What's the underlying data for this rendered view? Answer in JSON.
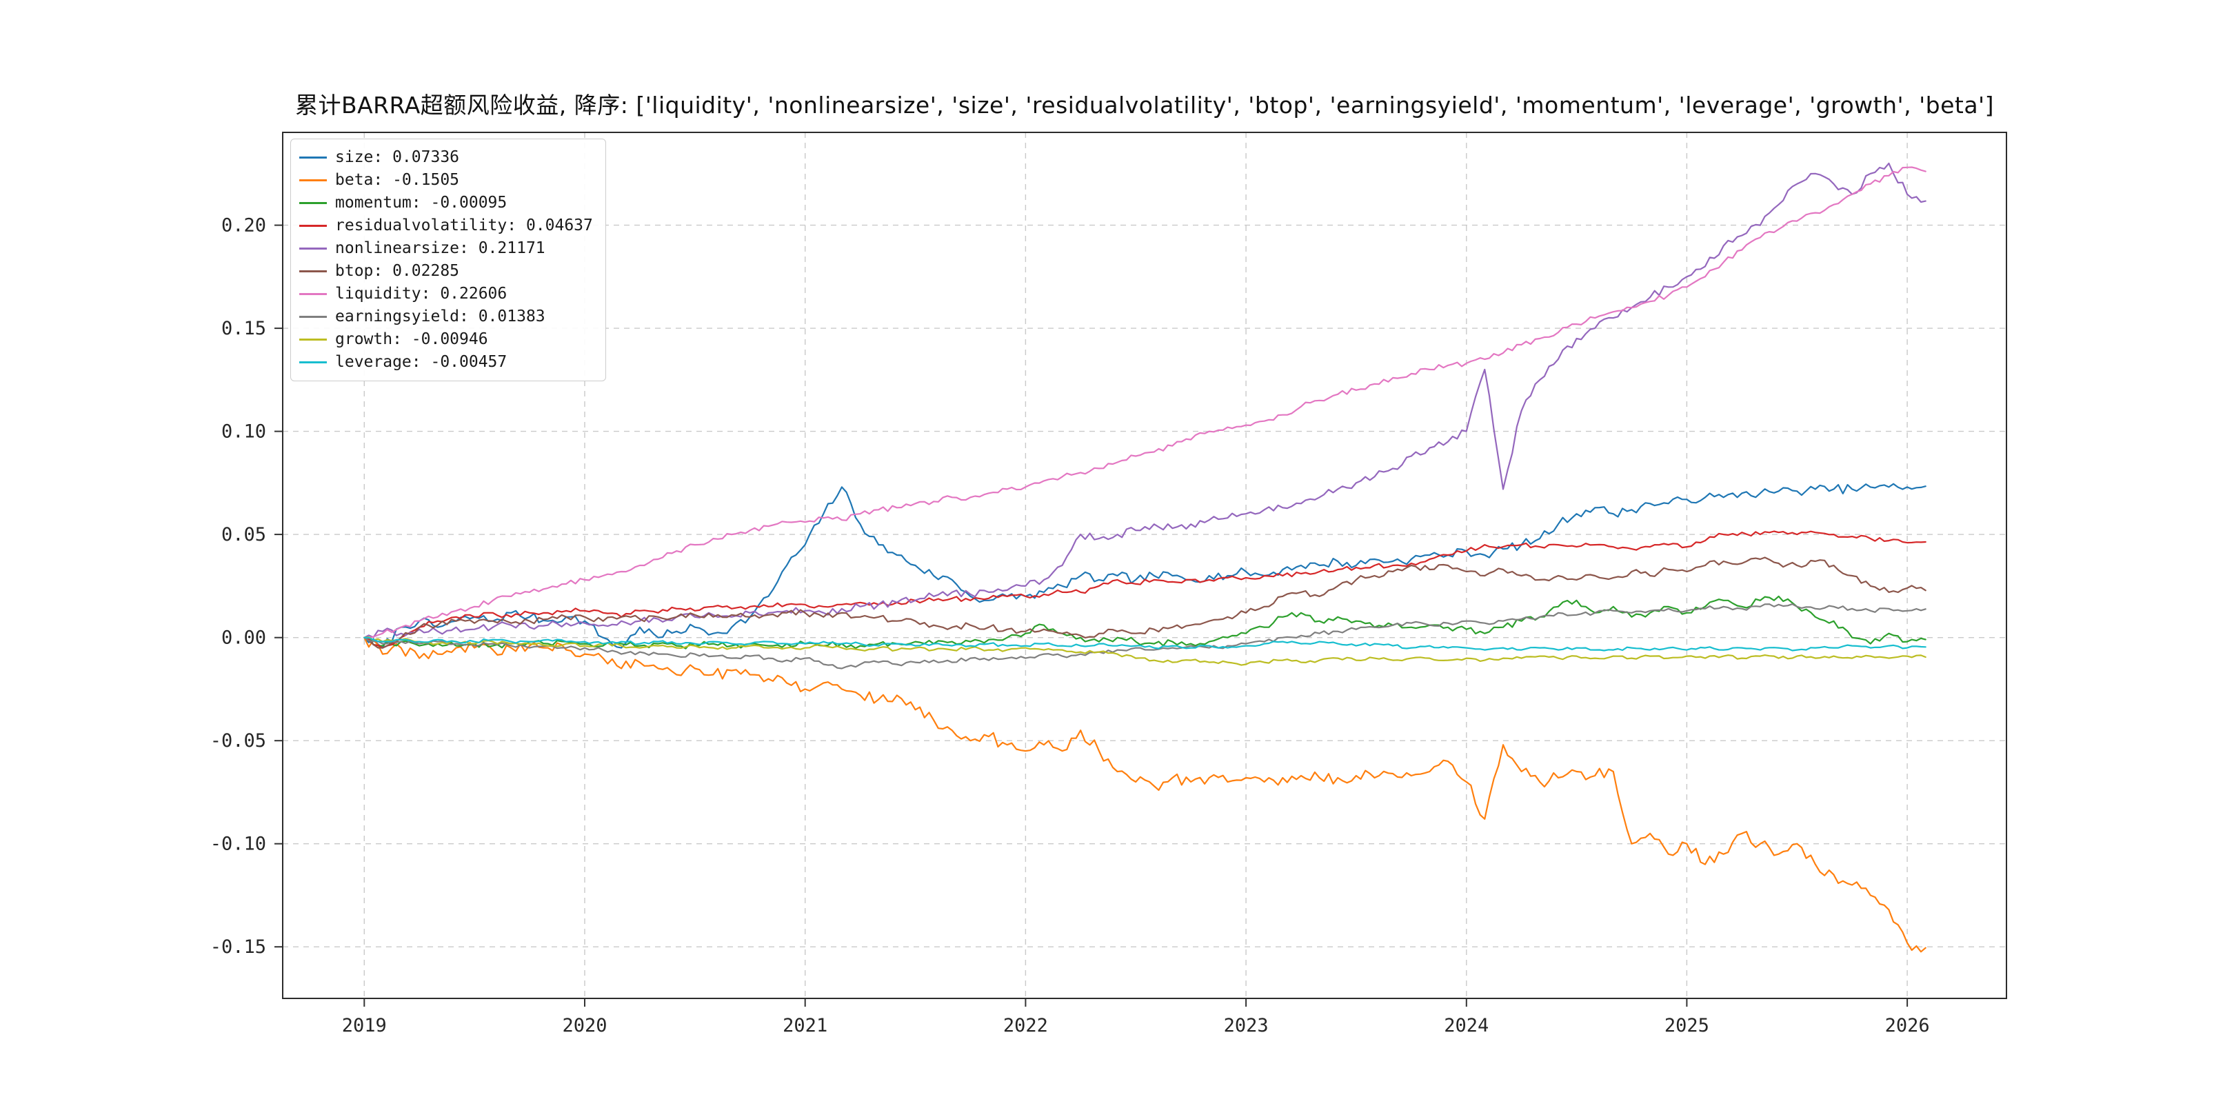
{
  "title": "累计BARRA超额风险收益, 降序: ['liquidity', 'nonlinearsize', 'size', 'residualvolatility', 'btop', 'earningsyield', 'momentum', 'leverage', 'growth', 'beta']",
  "chart_data": {
    "type": "line",
    "title": "累计BARRA超额风险收益",
    "xlabel": "",
    "ylabel": "",
    "grid": true,
    "grid_style": "dashed",
    "legend_position": "upper-left",
    "xlim": [
      2018.63,
      2026.45
    ],
    "ylim": [
      -0.175,
      0.245
    ],
    "xticks": [
      2019,
      2020,
      2021,
      2022,
      2023,
      2024,
      2025,
      2026
    ],
    "yticks": [
      -0.15,
      -0.1,
      -0.05,
      0.0,
      0.05,
      0.1,
      0.15,
      0.2
    ],
    "x_start": 2019.0,
    "x_step_years": 0.08333,
    "axis_color": "#333333",
    "grid_color": "#c9c9c9",
    "series": [
      {
        "name": "size",
        "label": "size: 0.07336",
        "color": "#1f77b4",
        "final_value": 0.07336,
        "noise": 0.0022,
        "values": [
          0.0,
          -0.005,
          0.005,
          0.008,
          0.005,
          0.008,
          0.01,
          0.008,
          0.012,
          0.01,
          0.008,
          0.01,
          0.008,
          0.0,
          -0.005,
          0.005,
          0.0,
          0.003,
          0.005,
          0.002,
          0.005,
          0.01,
          0.02,
          0.035,
          0.045,
          0.06,
          0.073,
          0.055,
          0.045,
          0.04,
          0.035,
          0.03,
          0.028,
          0.02,
          0.018,
          0.02,
          0.02,
          0.022,
          0.025,
          0.03,
          0.028,
          0.03,
          0.028,
          0.03,
          0.03,
          0.028,
          0.03,
          0.03,
          0.032,
          0.03,
          0.033,
          0.035,
          0.035,
          0.037,
          0.035,
          0.038,
          0.037,
          0.038,
          0.04,
          0.04,
          0.042,
          0.04,
          0.043,
          0.045,
          0.048,
          0.055,
          0.06,
          0.063,
          0.06,
          0.062,
          0.065,
          0.065,
          0.067,
          0.068,
          0.068,
          0.07,
          0.07,
          0.071,
          0.071,
          0.072,
          0.072,
          0.072,
          0.073,
          0.073,
          0.073,
          0.0734
        ]
      },
      {
        "name": "beta",
        "label": "beta: -0.1505",
        "color": "#ff7f0e",
        "final_value": -0.1505,
        "noise": 0.003,
        "values": [
          0.0,
          -0.008,
          -0.005,
          -0.01,
          -0.008,
          -0.005,
          -0.005,
          -0.006,
          -0.005,
          -0.004,
          -0.005,
          -0.006,
          -0.008,
          -0.01,
          -0.015,
          -0.012,
          -0.015,
          -0.018,
          -0.015,
          -0.018,
          -0.016,
          -0.018,
          -0.02,
          -0.022,
          -0.025,
          -0.022,
          -0.025,
          -0.028,
          -0.03,
          -0.028,
          -0.035,
          -0.04,
          -0.045,
          -0.05,
          -0.048,
          -0.052,
          -0.055,
          -0.052,
          -0.055,
          -0.045,
          -0.055,
          -0.065,
          -0.07,
          -0.072,
          -0.068,
          -0.07,
          -0.068,
          -0.07,
          -0.068,
          -0.07,
          -0.068,
          -0.067,
          -0.068,
          -0.068,
          -0.067,
          -0.068,
          -0.066,
          -0.067,
          -0.065,
          -0.06,
          -0.07,
          -0.088,
          -0.052,
          -0.065,
          -0.07,
          -0.068,
          -0.065,
          -0.067,
          -0.065,
          -0.1,
          -0.095,
          -0.105,
          -0.1,
          -0.11,
          -0.105,
          -0.095,
          -0.1,
          -0.105,
          -0.1,
          -0.11,
          -0.115,
          -0.12,
          -0.125,
          -0.132,
          -0.148,
          -0.1505
        ]
      },
      {
        "name": "momentum",
        "label": "momentum: -0.00095",
        "color": "#2ca02c",
        "final_value": -0.00095,
        "noise": 0.0015,
        "values": [
          0.0,
          -0.004,
          -0.002,
          -0.004,
          -0.003,
          -0.004,
          -0.003,
          -0.004,
          -0.003,
          -0.002,
          -0.003,
          -0.002,
          -0.003,
          -0.004,
          -0.003,
          -0.004,
          -0.003,
          -0.004,
          -0.004,
          -0.003,
          -0.004,
          -0.003,
          -0.004,
          -0.003,
          -0.003,
          -0.004,
          -0.003,
          -0.004,
          -0.003,
          -0.003,
          -0.002,
          -0.003,
          -0.002,
          -0.002,
          -0.001,
          0.0,
          0.002,
          0.006,
          0.002,
          0.0,
          -0.002,
          0.0,
          -0.002,
          -0.003,
          -0.002,
          -0.003,
          -0.002,
          0.0,
          0.002,
          0.005,
          0.01,
          0.012,
          0.008,
          0.01,
          0.008,
          0.005,
          0.006,
          0.005,
          0.006,
          0.005,
          0.004,
          0.002,
          0.005,
          0.008,
          0.01,
          0.015,
          0.018,
          0.012,
          0.015,
          0.01,
          0.012,
          0.015,
          0.012,
          0.015,
          0.018,
          0.015,
          0.018,
          0.02,
          0.015,
          0.01,
          0.008,
          0.0,
          -0.003,
          0.002,
          -0.002,
          -0.00095
        ]
      },
      {
        "name": "residualvolatility",
        "label": "residualvolatility: 0.04637",
        "color": "#d62728",
        "final_value": 0.04637,
        "noise": 0.0012,
        "values": [
          0.0,
          -0.005,
          0.0,
          0.005,
          0.008,
          0.01,
          0.01,
          0.012,
          0.01,
          0.012,
          0.012,
          0.013,
          0.013,
          0.012,
          0.01,
          0.013,
          0.012,
          0.014,
          0.013,
          0.015,
          0.014,
          0.015,
          0.015,
          0.016,
          0.016,
          0.015,
          0.016,
          0.017,
          0.016,
          0.017,
          0.018,
          0.018,
          0.019,
          0.018,
          0.019,
          0.02,
          0.02,
          0.021,
          0.022,
          0.022,
          0.025,
          0.028,
          0.026,
          0.028,
          0.027,
          0.028,
          0.028,
          0.029,
          0.029,
          0.03,
          0.03,
          0.031,
          0.032,
          0.033,
          0.034,
          0.035,
          0.035,
          0.036,
          0.038,
          0.04,
          0.042,
          0.045,
          0.044,
          0.045,
          0.044,
          0.045,
          0.044,
          0.045,
          0.044,
          0.043,
          0.044,
          0.045,
          0.044,
          0.047,
          0.05,
          0.051,
          0.05,
          0.051,
          0.05,
          0.051,
          0.05,
          0.049,
          0.048,
          0.047,
          0.046,
          0.04637
        ]
      },
      {
        "name": "nonlinearsize",
        "label": "nonlinearsize: 0.21171",
        "color": "#9467bd",
        "final_value": 0.21171,
        "noise": 0.002,
        "values": [
          0.0,
          0.003,
          0.002,
          0.004,
          0.003,
          0.005,
          0.004,
          0.005,
          0.006,
          0.005,
          0.006,
          0.007,
          0.007,
          0.006,
          0.008,
          0.008,
          0.009,
          0.01,
          0.01,
          0.011,
          0.01,
          0.012,
          0.012,
          0.013,
          0.013,
          0.012,
          0.014,
          0.015,
          0.016,
          0.017,
          0.018,
          0.02,
          0.022,
          0.021,
          0.022,
          0.023,
          0.025,
          0.028,
          0.035,
          0.05,
          0.048,
          0.05,
          0.052,
          0.055,
          0.053,
          0.055,
          0.057,
          0.058,
          0.06,
          0.062,
          0.063,
          0.065,
          0.068,
          0.072,
          0.075,
          0.078,
          0.082,
          0.088,
          0.092,
          0.095,
          0.1,
          0.13,
          0.072,
          0.11,
          0.125,
          0.135,
          0.145,
          0.15,
          0.155,
          0.16,
          0.165,
          0.17,
          0.175,
          0.18,
          0.19,
          0.195,
          0.2,
          0.21,
          0.22,
          0.225,
          0.22,
          0.215,
          0.225,
          0.23,
          0.215,
          0.21171
        ]
      },
      {
        "name": "btop",
        "label": "btop: 0.02285",
        "color": "#8c564b",
        "final_value": 0.02285,
        "noise": 0.0015,
        "values": [
          0.0,
          -0.005,
          0.0,
          0.005,
          0.006,
          0.008,
          0.007,
          0.008,
          0.007,
          0.008,
          0.009,
          0.01,
          0.01,
          0.008,
          0.01,
          0.009,
          0.01,
          0.01,
          0.011,
          0.01,
          0.011,
          0.01,
          0.011,
          0.012,
          0.012,
          0.01,
          0.012,
          0.01,
          0.01,
          0.008,
          0.008,
          0.006,
          0.005,
          0.006,
          0.005,
          0.004,
          0.003,
          0.004,
          0.002,
          0.001,
          0.002,
          0.003,
          0.002,
          0.004,
          0.005,
          0.006,
          0.008,
          0.01,
          0.012,
          0.015,
          0.02,
          0.022,
          0.02,
          0.025,
          0.028,
          0.03,
          0.032,
          0.035,
          0.033,
          0.035,
          0.032,
          0.03,
          0.033,
          0.03,
          0.028,
          0.03,
          0.028,
          0.03,
          0.029,
          0.032,
          0.03,
          0.033,
          0.032,
          0.035,
          0.037,
          0.036,
          0.038,
          0.036,
          0.035,
          0.037,
          0.035,
          0.03,
          0.025,
          0.022,
          0.024,
          0.02285
        ]
      },
      {
        "name": "liquidity",
        "label": "liquidity: 0.22606",
        "color": "#e377c2",
        "final_value": 0.22606,
        "noise": 0.0013,
        "values": [
          0.0,
          0.002,
          0.005,
          0.008,
          0.01,
          0.013,
          0.015,
          0.018,
          0.02,
          0.022,
          0.024,
          0.026,
          0.028,
          0.03,
          0.032,
          0.035,
          0.038,
          0.042,
          0.045,
          0.048,
          0.05,
          0.052,
          0.054,
          0.056,
          0.056,
          0.058,
          0.057,
          0.06,
          0.062,
          0.063,
          0.065,
          0.066,
          0.068,
          0.068,
          0.07,
          0.072,
          0.073,
          0.076,
          0.078,
          0.08,
          0.082,
          0.085,
          0.088,
          0.09,
          0.093,
          0.096,
          0.1,
          0.102,
          0.103,
          0.105,
          0.108,
          0.112,
          0.115,
          0.118,
          0.12,
          0.123,
          0.126,
          0.128,
          0.13,
          0.132,
          0.133,
          0.135,
          0.138,
          0.142,
          0.145,
          0.148,
          0.152,
          0.155,
          0.158,
          0.16,
          0.163,
          0.166,
          0.17,
          0.175,
          0.182,
          0.188,
          0.194,
          0.198,
          0.202,
          0.206,
          0.21,
          0.215,
          0.22,
          0.224,
          0.228,
          0.22606
        ]
      },
      {
        "name": "earningsyield",
        "label": "earningsyield: 0.01383",
        "color": "#7f7f7f",
        "final_value": 0.01383,
        "noise": 0.001,
        "values": [
          0.0,
          -0.003,
          -0.002,
          -0.003,
          -0.002,
          -0.003,
          -0.004,
          -0.003,
          -0.004,
          -0.005,
          -0.004,
          -0.005,
          -0.005,
          -0.006,
          -0.008,
          -0.007,
          -0.008,
          -0.009,
          -0.008,
          -0.009,
          -0.01,
          -0.009,
          -0.01,
          -0.011,
          -0.01,
          -0.013,
          -0.015,
          -0.013,
          -0.012,
          -0.013,
          -0.012,
          -0.011,
          -0.012,
          -0.01,
          -0.011,
          -0.01,
          -0.01,
          -0.008,
          -0.009,
          -0.008,
          -0.007,
          -0.006,
          -0.005,
          -0.006,
          -0.005,
          -0.004,
          -0.005,
          -0.004,
          -0.003,
          -0.002,
          0.0,
          0.001,
          0.002,
          0.003,
          0.004,
          0.005,
          0.006,
          0.007,
          0.006,
          0.007,
          0.008,
          0.007,
          0.008,
          0.009,
          0.01,
          0.012,
          0.011,
          0.012,
          0.013,
          0.012,
          0.013,
          0.014,
          0.013,
          0.014,
          0.015,
          0.014,
          0.015,
          0.016,
          0.015,
          0.014,
          0.015,
          0.014,
          0.013,
          0.014,
          0.013,
          0.01383
        ]
      },
      {
        "name": "growth",
        "label": "growth: -0.00946",
        "color": "#bcbd22",
        "final_value": -0.00946,
        "noise": 0.0008,
        "values": [
          0.0,
          -0.002,
          -0.001,
          -0.002,
          -0.003,
          -0.002,
          -0.003,
          -0.002,
          -0.003,
          -0.003,
          -0.004,
          -0.003,
          -0.004,
          -0.003,
          -0.004,
          -0.005,
          -0.004,
          -0.005,
          -0.004,
          -0.005,
          -0.005,
          -0.004,
          -0.005,
          -0.005,
          -0.005,
          -0.004,
          -0.005,
          -0.006,
          -0.005,
          -0.006,
          -0.005,
          -0.006,
          -0.006,
          -0.005,
          -0.006,
          -0.006,
          -0.005,
          -0.006,
          -0.006,
          -0.007,
          -0.007,
          -0.008,
          -0.01,
          -0.011,
          -0.012,
          -0.011,
          -0.012,
          -0.012,
          -0.013,
          -0.012,
          -0.011,
          -0.012,
          -0.011,
          -0.01,
          -0.011,
          -0.01,
          -0.011,
          -0.01,
          -0.01,
          -0.011,
          -0.01,
          -0.011,
          -0.01,
          -0.01,
          -0.009,
          -0.01,
          -0.009,
          -0.01,
          -0.009,
          -0.01,
          -0.009,
          -0.01,
          -0.009,
          -0.01,
          -0.009,
          -0.01,
          -0.009,
          -0.01,
          -0.009,
          -0.01,
          -0.009,
          -0.01,
          -0.009,
          -0.01,
          -0.009,
          -0.00946
        ]
      },
      {
        "name": "leverage",
        "label": "leverage: -0.00457",
        "color": "#17becf",
        "final_value": -0.00457,
        "noise": 0.0007,
        "values": [
          0.0,
          -0.002,
          -0.001,
          -0.002,
          -0.001,
          -0.002,
          -0.002,
          -0.001,
          -0.002,
          -0.002,
          -0.001,
          -0.002,
          -0.002,
          -0.003,
          -0.002,
          -0.003,
          -0.002,
          -0.003,
          -0.003,
          -0.002,
          -0.003,
          -0.003,
          -0.002,
          -0.003,
          -0.003,
          -0.002,
          -0.003,
          -0.003,
          -0.004,
          -0.003,
          -0.004,
          -0.003,
          -0.004,
          -0.004,
          -0.003,
          -0.004,
          -0.004,
          -0.003,
          -0.004,
          -0.004,
          -0.003,
          -0.004,
          -0.004,
          -0.005,
          -0.004,
          -0.005,
          -0.004,
          -0.005,
          -0.004,
          -0.003,
          -0.002,
          -0.003,
          -0.002,
          -0.003,
          -0.004,
          -0.003,
          -0.004,
          -0.005,
          -0.004,
          -0.005,
          -0.005,
          -0.006,
          -0.005,
          -0.006,
          -0.005,
          -0.006,
          -0.005,
          -0.006,
          -0.006,
          -0.005,
          -0.006,
          -0.005,
          -0.006,
          -0.005,
          -0.006,
          -0.005,
          -0.006,
          -0.005,
          -0.006,
          -0.005,
          -0.005,
          -0.004,
          -0.005,
          -0.004,
          -0.005,
          -0.00457
        ]
      }
    ]
  }
}
